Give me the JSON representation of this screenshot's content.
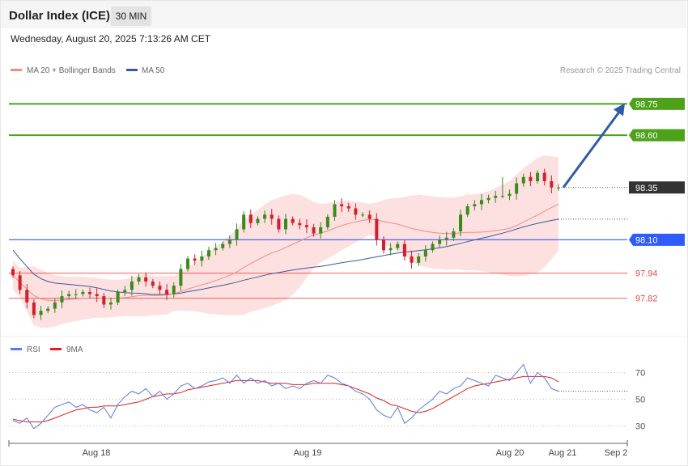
{
  "header": {
    "title": "Dollar Index (ICE)",
    "timeframe": "30 MIN"
  },
  "datetime": "Wednesday, August 20, 2025 7:13:26 AM CET",
  "copyright": "Research © 2025 Trading Central",
  "colors": {
    "bullish": "#3a8a1c",
    "bearish": "#d21f2b",
    "target": "#4ea21a",
    "pivot": "#2f5bff",
    "support": "#e84b4b",
    "ma20": "#f28b82",
    "ma50": "#3a5a9a",
    "band": "#fde0e0",
    "rsi": "#5b7be0",
    "rsi_ma": "#e02020",
    "arrow": "#2f5aa8"
  },
  "chart_data": [
    {
      "type": "candlestick",
      "legend": [
        {
          "name": "MA 20 + Bollinger Bands",
          "color": "#f28b82"
        },
        {
          "name": "MA 50",
          "color": "#3a5a9a"
        }
      ],
      "legend_placement": "top-left",
      "ylim": [
        97.66,
        98.86
      ],
      "x_ticks": [
        "Aug 18",
        "Aug 19",
        "Aug 20",
        "Aug 21",
        "Sep 2"
      ],
      "levels": [
        {
          "label": "98.75",
          "value": 98.75,
          "kind": "resistance"
        },
        {
          "label": "98.60",
          "value": 98.6,
          "kind": "resistance"
        },
        {
          "label": "98.35",
          "value": 98.35,
          "kind": "last-price"
        },
        {
          "label": "98.10",
          "value": 98.1,
          "kind": "pivot"
        },
        {
          "label": "97.94",
          "value": 97.94,
          "kind": "support"
        },
        {
          "label": "97.82",
          "value": 97.82,
          "kind": "support"
        }
      ],
      "arrow": {
        "from": 98.35,
        "to": 98.75
      },
      "series": [
        {
          "name": "Price",
          "values": [
            97.93,
            97.86,
            97.8,
            97.74,
            97.76,
            97.77,
            97.8,
            97.83,
            97.84,
            97.84,
            97.85,
            97.84,
            97.83,
            97.79,
            97.8,
            97.85,
            97.86,
            97.9,
            97.92,
            97.9,
            97.88,
            97.86,
            97.84,
            97.88,
            97.96,
            98.01,
            98.0,
            98.02,
            98.05,
            98.06,
            98.08,
            98.1,
            98.15,
            98.22,
            98.18,
            98.2,
            98.22,
            98.2,
            98.15,
            98.2,
            98.18,
            98.17,
            98.16,
            98.13,
            98.16,
            98.21,
            98.27,
            98.26,
            98.25,
            98.22,
            98.22,
            98.2,
            98.1,
            98.05,
            98.06,
            98.08,
            98.02,
            97.99,
            98.02,
            98.05,
            98.08,
            98.1,
            98.11,
            98.14,
            98.22,
            98.26,
            98.27,
            98.29,
            98.3,
            98.31,
            98.31,
            98.32,
            98.37,
            98.4,
            98.38,
            98.42,
            98.38,
            98.35,
            98.35
          ]
        }
      ]
    },
    {
      "type": "line",
      "legend": [
        {
          "name": "RSI",
          "color": "#5b7be0"
        },
        {
          "name": "9MA",
          "color": "#e02020"
        }
      ],
      "ylim": [
        20,
        80
      ],
      "y_ticks": [
        "70",
        "50",
        "30"
      ],
      "series": [
        {
          "name": "RSI",
          "values": [
            34,
            32,
            36,
            28,
            32,
            38,
            44,
            46,
            48,
            44,
            46,
            42,
            40,
            44,
            36,
            46,
            52,
            56,
            54,
            58,
            52,
            56,
            50,
            54,
            60,
            62,
            58,
            60,
            63,
            64,
            66,
            62,
            68,
            62,
            66,
            62,
            64,
            60,
            62,
            58,
            60,
            58,
            62,
            64,
            62,
            68,
            66,
            62,
            60,
            56,
            54,
            50,
            42,
            38,
            36,
            44,
            32,
            36,
            42,
            46,
            50,
            56,
            54,
            58,
            60,
            66,
            64,
            62,
            60,
            68,
            66,
            64,
            70,
            76,
            62,
            70,
            66,
            58,
            56
          ]
        },
        {
          "name": "9MA",
          "values": [
            35,
            34,
            33,
            33,
            33,
            34,
            36,
            38,
            40,
            42,
            43,
            44,
            44,
            45,
            45,
            45,
            46,
            47,
            48,
            50,
            52,
            53,
            54,
            54,
            55,
            57,
            58,
            59,
            60,
            61,
            62,
            63,
            64,
            64,
            64,
            64,
            63,
            62,
            62,
            62,
            61,
            61,
            61,
            62,
            62,
            62,
            62,
            61,
            60,
            58,
            56,
            54,
            51,
            49,
            46,
            45,
            43,
            41,
            40,
            41,
            43,
            46,
            49,
            52,
            55,
            58,
            60,
            61,
            62,
            63,
            64,
            65,
            66,
            67,
            67,
            67,
            67,
            66,
            63
          ]
        }
      ]
    }
  ]
}
